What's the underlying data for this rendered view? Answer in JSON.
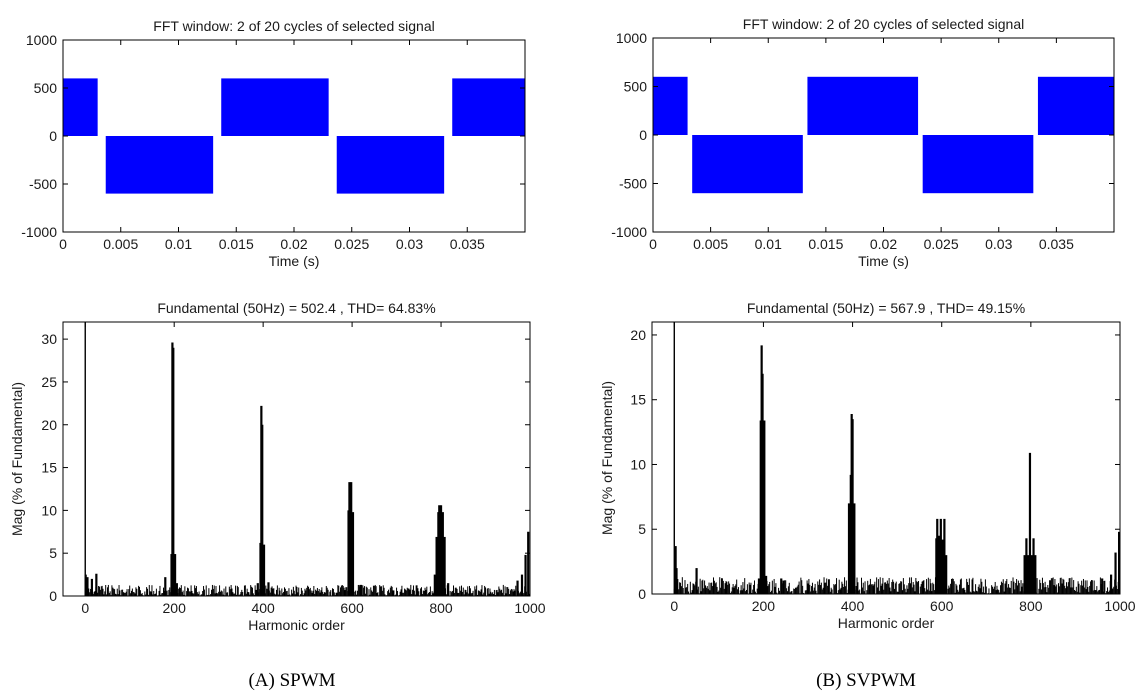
{
  "captions": {
    "left": "(A)   SPWM",
    "right": "(B) SVPWM"
  },
  "colors": {
    "waveform": "#0000ff",
    "spectrum": "#000000",
    "axes": "#000000"
  },
  "chart_data": [
    {
      "id": "spwm_time",
      "type": "area",
      "title": "FFT window: 2 of 20 cycles of selected signal",
      "xlabel": "Time (s)",
      "ylabel": "",
      "xlim": [
        0,
        0.04
      ],
      "ylim": [
        -1000,
        1000
      ],
      "xticks": [
        0,
        0.005,
        0.01,
        0.015,
        0.02,
        0.025,
        0.03,
        0.035
      ],
      "xtick_labels": [
        "0",
        "0.005",
        "0.01",
        "0.015",
        "0.02",
        "0.025",
        "0.03",
        "0.035"
      ],
      "yticks": [
        -1000,
        -500,
        0,
        500,
        1000
      ],
      "ytick_labels": [
        "-1000",
        "-500",
        "0",
        "500",
        "1000"
      ],
      "pulses": [
        {
          "start": 0,
          "end": 0.003,
          "value": 600
        },
        {
          "start": 0.0037,
          "end": 0.013,
          "value": -600
        },
        {
          "start": 0.0137,
          "end": 0.023,
          "value": 600
        },
        {
          "start": 0.0237,
          "end": 0.033,
          "value": -600
        },
        {
          "start": 0.0337,
          "end": 0.04,
          "value": 600
        }
      ]
    },
    {
      "id": "svpwm_time",
      "type": "area",
      "title": "FFT window: 2 of 20 cycles of selected signal",
      "xlabel": "Time (s)",
      "ylabel": "",
      "xlim": [
        0,
        0.04
      ],
      "ylim": [
        -1000,
        1000
      ],
      "xticks": [
        0,
        0.005,
        0.01,
        0.015,
        0.02,
        0.025,
        0.03,
        0.035
      ],
      "xtick_labels": [
        "0",
        "0.005",
        "0.01",
        "0.015",
        "0.02",
        "0.025",
        "0.03",
        "0.035"
      ],
      "yticks": [
        -1000,
        -500,
        0,
        500,
        1000
      ],
      "ytick_labels": [
        "-1000",
        "-500",
        "0",
        "500",
        "1000"
      ],
      "pulses": [
        {
          "start": 0,
          "end": 0.003,
          "value": 600
        },
        {
          "start": 0.0034,
          "end": 0.013,
          "value": -600
        },
        {
          "start": 0.0134,
          "end": 0.023,
          "value": 600
        },
        {
          "start": 0.0234,
          "end": 0.033,
          "value": -600
        },
        {
          "start": 0.0334,
          "end": 0.04,
          "value": 600
        }
      ]
    },
    {
      "id": "spwm_spectrum",
      "type": "bar",
      "title": "Fundamental (50Hz) = 502.4 , THD= 64.83%",
      "xlabel": "Harmonic order",
      "ylabel": "Mag (% of Fundamental)",
      "xlim": [
        -50,
        1000
      ],
      "ylim": [
        0,
        32
      ],
      "xticks": [
        0,
        200,
        400,
        600,
        800,
        1000
      ],
      "xtick_labels": [
        "0",
        "200",
        "400",
        "600",
        "800",
        "1000"
      ],
      "yticks": [
        0,
        5,
        10,
        15,
        20,
        25,
        30
      ],
      "ytick_labels": [
        "0",
        "5",
        "10",
        "15",
        "20",
        "25",
        "30"
      ],
      "fundamental_off_scale": true,
      "harmonics": [
        {
          "order": 1,
          "value": 2.5
        },
        {
          "order": 5,
          "value": 2.2
        },
        {
          "order": 15,
          "value": 2.0
        },
        {
          "order": 25,
          "value": 2.6
        },
        {
          "order": 180,
          "value": 2.2
        },
        {
          "order": 194,
          "value": 4.9
        },
        {
          "order": 196,
          "value": 29.6
        },
        {
          "order": 198,
          "value": 29.0
        },
        {
          "order": 202,
          "value": 4.9
        },
        {
          "order": 206,
          "value": 1.5
        },
        {
          "order": 388,
          "value": 1.5
        },
        {
          "order": 394,
          "value": 6.2
        },
        {
          "order": 396,
          "value": 22.2
        },
        {
          "order": 398,
          "value": 20.0
        },
        {
          "order": 402,
          "value": 6.0
        },
        {
          "order": 412,
          "value": 1.6
        },
        {
          "order": 592,
          "value": 10.0
        },
        {
          "order": 594,
          "value": 13.3
        },
        {
          "order": 598,
          "value": 13.3
        },
        {
          "order": 602,
          "value": 9.8
        },
        {
          "order": 620,
          "value": 1.3
        },
        {
          "order": 786,
          "value": 2.5
        },
        {
          "order": 790,
          "value": 6.9
        },
        {
          "order": 794,
          "value": 9.8
        },
        {
          "order": 796,
          "value": 10.6
        },
        {
          "order": 800,
          "value": 10.6
        },
        {
          "order": 804,
          "value": 9.8
        },
        {
          "order": 808,
          "value": 6.9
        },
        {
          "order": 816,
          "value": 1.5
        },
        {
          "order": 972,
          "value": 1.8
        },
        {
          "order": 982,
          "value": 2.5
        },
        {
          "order": 990,
          "value": 4.8
        },
        {
          "order": 996,
          "value": 7.5
        }
      ]
    },
    {
      "id": "svpwm_spectrum",
      "type": "bar",
      "title": "Fundamental (50Hz) = 567.9 , THD= 49.15%",
      "xlabel": "Harmonic order",
      "ylabel": "Mag (% of Fundamental)",
      "xlim": [
        -50,
        1000
      ],
      "ylim": [
        0,
        21
      ],
      "xticks": [
        0,
        200,
        400,
        600,
        800,
        1000
      ],
      "xtick_labels": [
        "0",
        "200",
        "400",
        "600",
        "800",
        "1000"
      ],
      "yticks": [
        0,
        5,
        10,
        15,
        20
      ],
      "ytick_labels": [
        "0",
        "5",
        "10",
        "15",
        "20"
      ],
      "fundamental_off_scale": true,
      "harmonics": [
        {
          "order": 3,
          "value": 3.7
        },
        {
          "order": 5,
          "value": 2.0
        },
        {
          "order": 50,
          "value": 2.0
        },
        {
          "order": 190,
          "value": 1.2
        },
        {
          "order": 194,
          "value": 13.4
        },
        {
          "order": 196,
          "value": 19.2
        },
        {
          "order": 198,
          "value": 17.0
        },
        {
          "order": 202,
          "value": 13.4
        },
        {
          "order": 206,
          "value": 1.4
        },
        {
          "order": 240,
          "value": 1.2
        },
        {
          "order": 392,
          "value": 7.0
        },
        {
          "order": 396,
          "value": 9.2
        },
        {
          "order": 398,
          "value": 13.9
        },
        {
          "order": 400,
          "value": 13.5
        },
        {
          "order": 404,
          "value": 7.0
        },
        {
          "order": 588,
          "value": 4.3
        },
        {
          "order": 590,
          "value": 5.8
        },
        {
          "order": 594,
          "value": 4.5
        },
        {
          "order": 598,
          "value": 5.8
        },
        {
          "order": 602,
          "value": 4.2
        },
        {
          "order": 606,
          "value": 5.8
        },
        {
          "order": 610,
          "value": 3.0
        },
        {
          "order": 786,
          "value": 3.0
        },
        {
          "order": 790,
          "value": 4.3
        },
        {
          "order": 794,
          "value": 3.0
        },
        {
          "order": 798,
          "value": 10.9
        },
        {
          "order": 802,
          "value": 3.0
        },
        {
          "order": 806,
          "value": 4.3
        },
        {
          "order": 810,
          "value": 3.0
        },
        {
          "order": 960,
          "value": 1.2
        },
        {
          "order": 980,
          "value": 1.5
        },
        {
          "order": 990,
          "value": 3.2
        },
        {
          "order": 998,
          "value": 4.8
        }
      ]
    }
  ]
}
